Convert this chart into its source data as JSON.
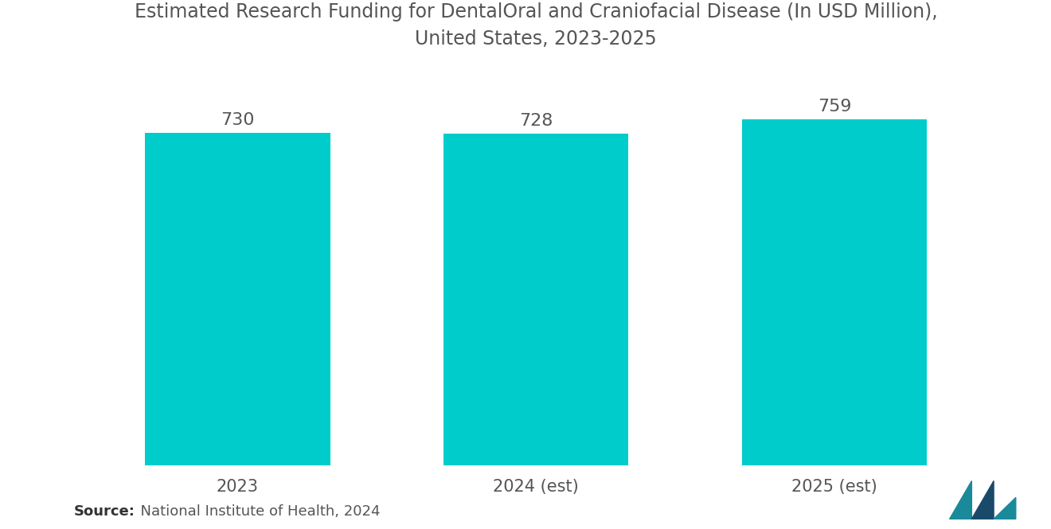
{
  "title_line1": "Estimated Research Funding for DentalOral and Craniofacial Disease (In USD Million),",
  "title_line2": "United States, 2023-2025",
  "categories": [
    "2023",
    "2024 (est)",
    "2025 (est)"
  ],
  "values": [
    730,
    728,
    759
  ],
  "bar_color": "#00CCCC",
  "value_labels": [
    "730",
    "728",
    "759"
  ],
  "source_bold": "Source:",
  "source_text": "  National Institute of Health, 2024",
  "title_fontsize": 17,
  "label_fontsize": 16,
  "tick_fontsize": 15,
  "source_fontsize": 13,
  "background_color": "#ffffff",
  "text_color": "#555555",
  "ylim": [
    0,
    870
  ],
  "bar_width": 0.62
}
